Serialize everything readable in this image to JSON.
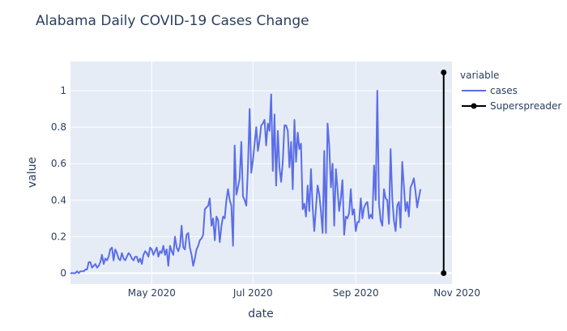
{
  "chart_data": {
    "type": "line",
    "title": "Alabama Daily COVID-19 Cases Change",
    "xlabel": "date",
    "ylabel": "value",
    "legend_title": "variable",
    "legend_position": "right",
    "xlim": [
      "2020-03-13",
      "2020-10-29"
    ],
    "ylim": [
      -0.06,
      1.16
    ],
    "x_ticks": [
      "May 2020",
      "Jul 2020",
      "Sep 2020",
      "Nov 2020"
    ],
    "x_tick_dates": [
      "2020-05-01",
      "2020-07-01",
      "2020-09-01",
      "2020-11-01"
    ],
    "y_ticks": [
      "0",
      "0.2",
      "0.4",
      "0.6",
      "0.8",
      "1"
    ],
    "y_tick_values": [
      0,
      0.2,
      0.4,
      0.6,
      0.8,
      1
    ],
    "grid": true,
    "colors": {
      "cases": "#5b6ee8",
      "Superspreader": "#000000",
      "plot_bg": "#e5ecf6"
    },
    "series": [
      {
        "name": "cases",
        "mode": "lines",
        "x_start": "2020-03-13",
        "x_step_days": 1,
        "values": [
          0.0,
          0.0,
          0.0,
          0.0,
          0.01,
          0.0,
          0.01,
          0.01,
          0.01,
          0.02,
          0.02,
          0.06,
          0.06,
          0.03,
          0.04,
          0.05,
          0.03,
          0.04,
          0.06,
          0.1,
          0.05,
          0.08,
          0.07,
          0.09,
          0.13,
          0.14,
          0.07,
          0.13,
          0.11,
          0.08,
          0.07,
          0.11,
          0.08,
          0.07,
          0.09,
          0.11,
          0.1,
          0.08,
          0.07,
          0.09,
          0.09,
          0.06,
          0.08,
          0.05,
          0.1,
          0.12,
          0.11,
          0.09,
          0.14,
          0.13,
          0.1,
          0.12,
          0.14,
          0.09,
          0.12,
          0.11,
          0.15,
          0.1,
          0.13,
          0.04,
          0.15,
          0.12,
          0.1,
          0.2,
          0.14,
          0.12,
          0.15,
          0.26,
          0.14,
          0.13,
          0.21,
          0.22,
          0.14,
          0.1,
          0.04,
          0.08,
          0.13,
          0.15,
          0.18,
          0.19,
          0.21,
          0.35,
          0.36,
          0.37,
          0.41,
          0.26,
          0.3,
          0.18,
          0.31,
          0.29,
          0.17,
          0.26,
          0.31,
          0.3,
          0.4,
          0.46,
          0.4,
          0.37,
          0.15,
          0.7,
          0.43,
          0.47,
          0.52,
          0.72,
          0.42,
          0.4,
          0.37,
          0.58,
          0.9,
          0.55,
          0.62,
          0.71,
          0.8,
          0.67,
          0.73,
          0.81,
          0.82,
          0.84,
          0.7,
          0.82,
          0.78,
          0.98,
          0.56,
          0.87,
          0.48,
          0.78,
          0.58,
          0.5,
          0.61,
          0.81,
          0.81,
          0.78,
          0.58,
          0.72,
          0.46,
          0.84,
          0.61,
          0.77,
          0.68,
          0.71,
          0.35,
          0.38,
          0.31,
          0.48,
          0.34,
          0.57,
          0.36,
          0.23,
          0.36,
          0.48,
          0.43,
          0.34,
          0.22,
          0.67,
          0.22,
          0.82,
          0.7,
          0.47,
          0.6,
          0.26,
          0.57,
          0.46,
          0.34,
          0.41,
          0.51,
          0.21,
          0.31,
          0.3,
          0.33,
          0.46,
          0.32,
          0.35,
          0.23,
          0.28,
          0.28,
          0.41,
          0.3,
          0.36,
          0.38,
          0.39,
          0.3,
          0.32,
          0.3,
          0.59,
          0.4,
          1.0,
          0.38,
          0.29,
          0.26,
          0.46,
          0.41,
          0.4,
          0.27,
          0.68,
          0.41,
          0.29,
          0.23,
          0.37,
          0.39,
          0.25,
          0.61,
          0.48,
          0.34,
          0.39,
          0.31,
          0.47,
          0.49,
          0.52,
          0.45,
          0.36,
          0.41,
          0.46
        ]
      },
      {
        "name": "Superspreader",
        "mode": "lines+markers",
        "x": [
          "2020-10-24",
          "2020-10-24"
        ],
        "y": [
          0,
          1.1
        ]
      }
    ]
  }
}
